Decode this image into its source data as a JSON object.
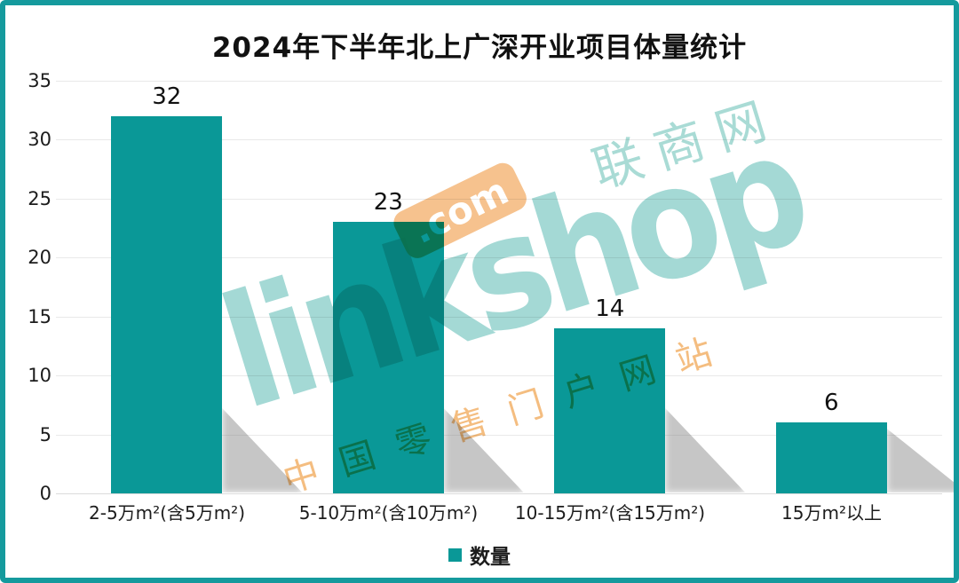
{
  "title": "2024年下半年北上广深开业项目体量统计",
  "chart_data": {
    "type": "bar",
    "title": "2024年下半年北上广深开业项目体量统计",
    "categories": [
      "2-5万m²(含5万m²)",
      "5-10万m²(含10万m²)",
      "10-15万m²(含15万m²)",
      "15万m²以上"
    ],
    "series": [
      {
        "name": "数量",
        "color": "#0a9897",
        "values": [
          32,
          23,
          14,
          6
        ]
      }
    ],
    "data_labels": [
      "32",
      "23",
      "14",
      "6"
    ],
    "yticks": [
      0,
      5,
      10,
      15,
      20,
      25,
      30,
      35
    ],
    "ylim": [
      0,
      35
    ],
    "xlabel": "",
    "ylabel": "",
    "grid": true,
    "legend_position": "bottom"
  },
  "legend": {
    "items": [
      {
        "label": "数量",
        "color": "#0a9897"
      }
    ]
  },
  "watermark": {
    "brand": "linkshop",
    "com_badge": ".com",
    "site_cn": "联商网",
    "tagline_cn": "中国零售门户网站",
    "teal": "#8dd0ca",
    "orange": "#f3b46e"
  },
  "colors": {
    "bar": "#0a9897",
    "frame_border": "#159a9d",
    "gridline": "#e9e9e9",
    "text": "#1c1c1c",
    "shadow": "rgba(120,120,120,0.42)"
  }
}
